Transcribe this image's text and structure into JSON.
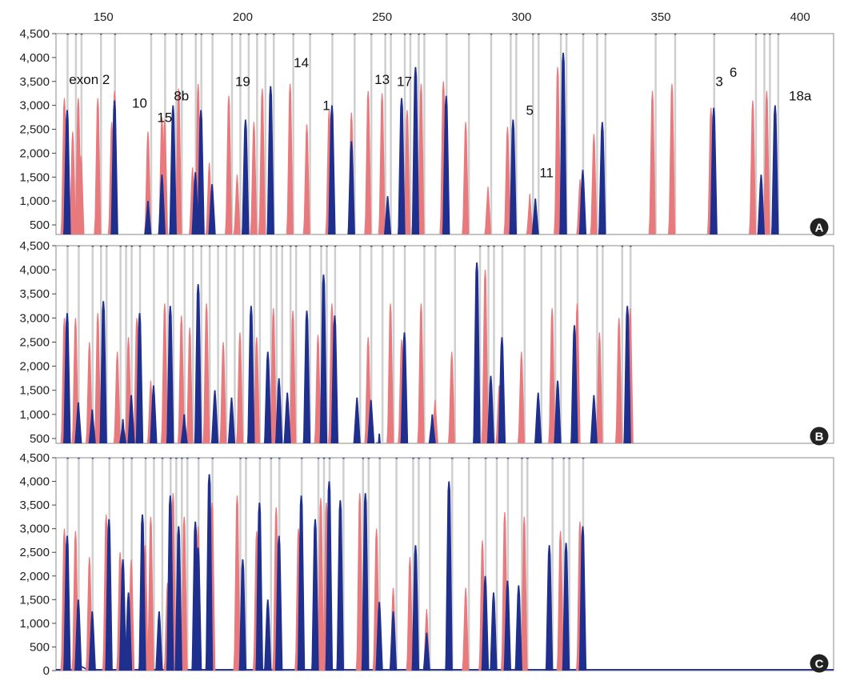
{
  "figure": {
    "x_axis_ticks": [
      "150",
      "200",
      "250",
      "300",
      "350",
      "400"
    ],
    "colors": {
      "red": "#e8797d",
      "blue": "#1f2f8e",
      "marker": "#cfcfcf",
      "frame": "#888888",
      "badge": "#222222"
    }
  },
  "chart_data": [
    {
      "panel": "A",
      "type": "line",
      "xlim": [
        133,
        412
      ],
      "ylim": [
        300,
        4500
      ],
      "y_ticks": [
        "500",
        "1,000",
        "1,500",
        "2,000",
        "2,500",
        "3,000",
        "3,500",
        "4,000",
        "4,500"
      ],
      "annotations": [
        {
          "text": "exon 2",
          "x": 145,
          "y": 3450
        },
        {
          "text": "10",
          "x": 163,
          "y": 2950
        },
        {
          "text": "15",
          "x": 172,
          "y": 2650
        },
        {
          "text": "8b",
          "x": 178,
          "y": 3100
        },
        {
          "text": "19",
          "x": 200,
          "y": 3400
        },
        {
          "text": "14",
          "x": 221,
          "y": 3800
        },
        {
          "text": "1",
          "x": 230,
          "y": 2900
        },
        {
          "text": "13",
          "x": 250,
          "y": 3450
        },
        {
          "text": "17",
          "x": 258,
          "y": 3400
        },
        {
          "text": "5",
          "x": 303,
          "y": 2800
        },
        {
          "text": "11",
          "x": 309,
          "y": 1500
        },
        {
          "text": "3",
          "x": 371,
          "y": 3400
        },
        {
          "text": "6",
          "x": 376,
          "y": 3600
        },
        {
          "text": "18a",
          "x": 400,
          "y": 3100
        }
      ],
      "series": [
        {
          "color": "red",
          "peaks": [
            [
              136,
              3150
            ],
            [
              139,
              2450
            ],
            [
              141,
              3150
            ],
            [
              142,
              1950
            ],
            [
              148,
              3150
            ],
            [
              153,
              2650
            ],
            [
              154,
              3300
            ],
            [
              166,
              2450
            ],
            [
              171,
              2750
            ],
            [
              172,
              2700
            ],
            [
              177,
              3350
            ],
            [
              182,
              1700
            ],
            [
              184,
              3450
            ],
            [
              188,
              1800
            ],
            [
              195,
              3200
            ],
            [
              198,
              1550
            ],
            [
              204,
              2650
            ],
            [
              207,
              3350
            ],
            [
              217,
              3450
            ],
            [
              223,
              2600
            ],
            [
              231,
              2900
            ],
            [
              239,
              2850
            ],
            [
              245,
              3300
            ],
            [
              250,
              3250
            ],
            [
              259,
              2900
            ],
            [
              264,
              3450
            ],
            [
              272,
              3500
            ],
            [
              280,
              2650
            ],
            [
              288,
              1300
            ],
            [
              295,
              2550
            ],
            [
              303,
              1150
            ],
            [
              313,
              3800
            ],
            [
              321,
              1450
            ],
            [
              326,
              2400
            ],
            [
              347,
              3300
            ],
            [
              354,
              3450
            ],
            [
              368,
              2950
            ],
            [
              383,
              3100
            ],
            [
              388,
              3300
            ]
          ]
        },
        {
          "color": "blue",
          "peaks": [
            [
              137,
              2900
            ],
            [
              154,
              3100
            ],
            [
              166,
              1000
            ],
            [
              171,
              1550
            ],
            [
              175,
              3000
            ],
            [
              183,
              1600
            ],
            [
              185,
              2900
            ],
            [
              189,
              1350
            ],
            [
              201,
              2700
            ],
            [
              210,
              3400
            ],
            [
              232,
              3000
            ],
            [
              239,
              2250
            ],
            [
              252,
              1100
            ],
            [
              257,
              3150
            ],
            [
              262,
              3800
            ],
            [
              273,
              3200
            ],
            [
              297,
              2700
            ],
            [
              305,
              1050
            ],
            [
              315,
              4100
            ],
            [
              322,
              1650
            ],
            [
              329,
              2650
            ],
            [
              369,
              2950
            ],
            [
              386,
              1550
            ],
            [
              391,
              3000
            ]
          ]
        }
      ]
    },
    {
      "panel": "B",
      "type": "line",
      "xlim": [
        133,
        412
      ],
      "ylim": [
        400,
        4500
      ],
      "y_ticks": [
        "500",
        "1,000",
        "1,500",
        "2,000",
        "2,500",
        "3,000",
        "3,500",
        "4,000",
        "4,500"
      ],
      "series": [
        {
          "color": "red",
          "peaks": [
            [
              136,
              3000
            ],
            [
              140,
              3000
            ],
            [
              145,
              2500
            ],
            [
              148,
              3100
            ],
            [
              155,
              2300
            ],
            [
              159,
              2600
            ],
            [
              162,
              3000
            ],
            [
              167,
              1700
            ],
            [
              172,
              3300
            ],
            [
              178,
              3050
            ],
            [
              181,
              2800
            ],
            [
              187,
              3300
            ],
            [
              193,
              2500
            ],
            [
              199,
              2700
            ],
            [
              205,
              2600
            ],
            [
              211,
              3200
            ],
            [
              218,
              3150
            ],
            [
              227,
              2650
            ],
            [
              232,
              3300
            ],
            [
              245,
              2600
            ],
            [
              253,
              3300
            ],
            [
              257,
              2550
            ],
            [
              264,
              3300
            ],
            [
              269,
              1300
            ],
            [
              275,
              2300
            ],
            [
              287,
              4000
            ],
            [
              292,
              1600
            ],
            [
              300,
              2300
            ],
            [
              311,
              3200
            ],
            [
              320,
              3300
            ],
            [
              328,
              2700
            ],
            [
              335,
              3000
            ],
            [
              339,
              3200
            ]
          ]
        },
        {
          "color": "blue",
          "peaks": [
            [
              137,
              3100
            ],
            [
              141,
              1250
            ],
            [
              146,
              1100
            ],
            [
              150,
              3350
            ],
            [
              157,
              900
            ],
            [
              160,
              1400
            ],
            [
              163,
              3100
            ],
            [
              168,
              1600
            ],
            [
              174,
              3250
            ],
            [
              179,
              1000
            ],
            [
              184,
              3700
            ],
            [
              190,
              1500
            ],
            [
              196,
              1350
            ],
            [
              203,
              3250
            ],
            [
              209,
              2300
            ],
            [
              213,
              1750
            ],
            [
              216,
              1450
            ],
            [
              223,
              3150
            ],
            [
              229,
              3900
            ],
            [
              233,
              3050
            ],
            [
              241,
              1350
            ],
            [
              246,
              1300
            ],
            [
              249,
              600
            ],
            [
              258,
              2700
            ],
            [
              268,
              1000
            ],
            [
              284,
              4150
            ],
            [
              289,
              1800
            ],
            [
              293,
              2600
            ],
            [
              306,
              1450
            ],
            [
              313,
              1700
            ],
            [
              319,
              2850
            ],
            [
              326,
              1400
            ],
            [
              338,
              3250
            ]
          ]
        }
      ]
    },
    {
      "panel": "C",
      "type": "line",
      "xlim": [
        133,
        412
      ],
      "ylim": [
        0,
        4500
      ],
      "y_ticks": [
        "0",
        "500",
        "1,000",
        "1,500",
        "2,000",
        "2,500",
        "3,000",
        "3,500",
        "4,000",
        "4,500"
      ],
      "series": [
        {
          "color": "red",
          "peaks": [
            [
              136,
              3000
            ],
            [
              140,
              2950
            ],
            [
              145,
              2400
            ],
            [
              151,
              3300
            ],
            [
              156,
              2500
            ],
            [
              160,
              2350
            ],
            [
              165,
              2650
            ],
            [
              167,
              3250
            ],
            [
              173,
              1850
            ],
            [
              175,
              3750
            ],
            [
              179,
              3250
            ],
            [
              184,
              3050
            ],
            [
              189,
              3550
            ],
            [
              198,
              3700
            ],
            [
              205,
              2950
            ],
            [
              212,
              3450
            ],
            [
              220,
              3000
            ],
            [
              228,
              3650
            ],
            [
              230,
              3550
            ],
            [
              242,
              3750
            ],
            [
              248,
              3000
            ],
            [
              254,
              1750
            ],
            [
              260,
              2400
            ],
            [
              266,
              1300
            ],
            [
              280,
              1750
            ],
            [
              286,
              2750
            ],
            [
              294,
              3350
            ],
            [
              301,
              3250
            ],
            [
              314,
              2950
            ],
            [
              321,
              3150
            ]
          ]
        },
        {
          "color": "blue",
          "peaks": [
            [
              137,
              2850
            ],
            [
              141,
              1500
            ],
            [
              146,
              1250
            ],
            [
              152,
              3200
            ],
            [
              157,
              2350
            ],
            [
              159,
              1650
            ],
            [
              164,
              3300
            ],
            [
              170,
              1250
            ],
            [
              174,
              3700
            ],
            [
              177,
              3050
            ],
            [
              183,
              3150
            ],
            [
              184,
              2600
            ],
            [
              188,
              4150
            ],
            [
              200,
              2350
            ],
            [
              206,
              3550
            ],
            [
              209,
              1500
            ],
            [
              213,
              2850
            ],
            [
              221,
              3700
            ],
            [
              226,
              3200
            ],
            [
              231,
              4000
            ],
            [
              235,
              3600
            ],
            [
              244,
              3750
            ],
            [
              249,
              1450
            ],
            [
              254,
              1250
            ],
            [
              262,
              2650
            ],
            [
              266,
              800
            ],
            [
              274,
              4000
            ],
            [
              287,
              2000
            ],
            [
              290,
              1650
            ],
            [
              295,
              1900
            ],
            [
              299,
              1800
            ],
            [
              310,
              2650
            ],
            [
              316,
              2700
            ],
            [
              322,
              3050
            ]
          ]
        }
      ]
    }
  ]
}
